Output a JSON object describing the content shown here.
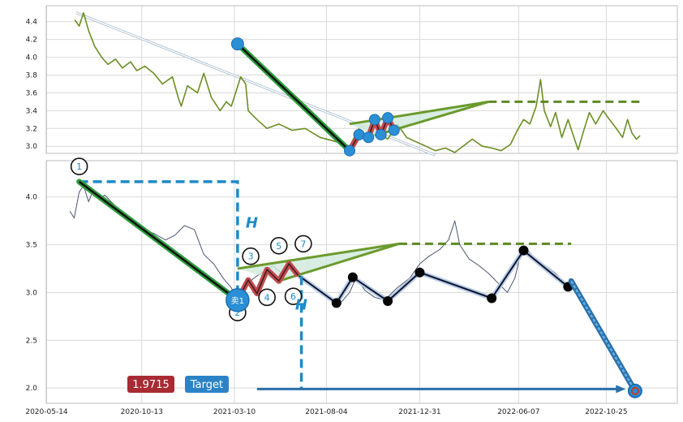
{
  "chart_data": [
    {
      "type": "line",
      "panel": "top",
      "y_ticks": [
        "3.0",
        "3.2",
        "3.4",
        "3.6",
        "3.8",
        "4.0",
        "4.2",
        "4.4"
      ],
      "ylim": [
        2.92,
        4.58
      ],
      "grid": true,
      "series": [
        {
          "name": "",
          "color": "#6b8e23",
          "points": [
            [
              "2020-06-28",
              4.42
            ],
            [
              "2020-07-05",
              4.35
            ],
            [
              "2020-07-12",
              4.5
            ],
            [
              "2020-07-20",
              4.3
            ],
            [
              "2020-07-30",
              4.12
            ],
            [
              "2020-08-10",
              4.0
            ],
            [
              "2020-08-20",
              3.92
            ],
            [
              "2020-09-01",
              3.98
            ],
            [
              "2020-09-12",
              3.88
            ],
            [
              "2020-09-25",
              3.95
            ],
            [
              "2020-10-05",
              3.85
            ],
            [
              "2020-10-18",
              3.9
            ],
            [
              "2020-11-01",
              3.82
            ],
            [
              "2020-11-15",
              3.7
            ],
            [
              "2020-12-01",
              3.78
            ],
            [
              "2020-12-10",
              3.55
            ],
            [
              "2020-12-15",
              3.45
            ],
            [
              "2020-12-25",
              3.68
            ],
            [
              "2021-01-10",
              3.6
            ],
            [
              "2021-01-20",
              3.82
            ],
            [
              "2021-02-01",
              3.55
            ],
            [
              "2021-02-15",
              3.4
            ],
            [
              "2021-02-25",
              3.5
            ],
            [
              "2021-03-05",
              3.45
            ],
            [
              "2021-03-20",
              3.78
            ],
            [
              "2021-03-28",
              3.7
            ],
            [
              "2021-04-01",
              3.4
            ],
            [
              "2021-04-15",
              3.3
            ],
            [
              "2021-05-01",
              3.2
            ],
            [
              "2021-05-20",
              3.25
            ],
            [
              "2021-06-10",
              3.18
            ],
            [
              "2021-07-01",
              3.2
            ],
            [
              "2021-07-25",
              3.1
            ],
            [
              "2021-08-20",
              3.05
            ],
            [
              "2021-09-10",
              3.0
            ],
            [
              "2021-09-25",
              3.2
            ],
            [
              "2021-10-10",
              3.1
            ],
            [
              "2021-10-25",
              3.15
            ],
            [
              "2021-11-10",
              3.08
            ],
            [
              "2021-11-25",
              3.25
            ],
            [
              "2021-12-10",
              3.1
            ],
            [
              "2021-12-25",
              3.05
            ],
            [
              "2022-01-10",
              3.0
            ],
            [
              "2022-01-25",
              2.95
            ],
            [
              "2022-02-10",
              2.98
            ],
            [
              "2022-02-25",
              2.93
            ],
            [
              "2022-03-10",
              3.0
            ],
            [
              "2022-03-25",
              3.08
            ],
            [
              "2022-04-10",
              3.0
            ],
            [
              "2022-04-25",
              2.98
            ],
            [
              "2022-05-10",
              2.95
            ],
            [
              "2022-05-25",
              3.02
            ],
            [
              "2022-06-05",
              3.18
            ],
            [
              "2022-06-15",
              3.3
            ],
            [
              "2022-06-25",
              3.25
            ],
            [
              "2022-07-05",
              3.45
            ],
            [
              "2022-07-12",
              3.75
            ],
            [
              "2022-07-18",
              3.4
            ],
            [
              "2022-07-28",
              3.22
            ],
            [
              "2022-08-05",
              3.38
            ],
            [
              "2022-08-15",
              3.1
            ],
            [
              "2022-08-25",
              3.3
            ],
            [
              "2022-09-01",
              3.15
            ],
            [
              "2022-09-10",
              2.96
            ],
            [
              "2022-09-20",
              3.2
            ],
            [
              "2022-09-28",
              3.38
            ],
            [
              "2022-10-08",
              3.25
            ],
            [
              "2022-10-20",
              3.4
            ],
            [
              "2022-10-30",
              3.3
            ],
            [
              "2022-11-10",
              3.2
            ],
            [
              "2022-11-20",
              3.1
            ],
            [
              "2022-11-28",
              3.3
            ],
            [
              "2022-12-05",
              3.15
            ],
            [
              "2022-12-12",
              3.08
            ],
            [
              "2022-12-18",
              3.12
            ]
          ]
        }
      ],
      "trendline": {
        "from": [
          "2020-06-30",
          4.5
        ],
        "to": [
          "2022-01-25",
          2.9
        ]
      },
      "down_leg": {
        "from": [
          "2021-03-15",
          4.15
        ],
        "to": [
          "2021-09-10",
          2.95
        ]
      },
      "zigzag": [
        [
          "2021-09-10",
          2.95
        ],
        [
          "2021-09-25",
          3.13
        ],
        [
          "2021-10-10",
          3.1
        ],
        [
          "2021-10-20",
          3.3
        ],
        [
          "2021-10-30",
          3.13
        ],
        [
          "2021-11-10",
          3.32
        ],
        [
          "2021-11-20",
          3.18
        ]
      ],
      "triangle": {
        "apex": [
          "2022-04-20",
          3.5
        ],
        "upper_start": [
          "2021-09-10",
          3.25
        ],
        "lower_start": [
          "2021-10-20",
          3.12
        ]
      },
      "target_dashed": {
        "from": [
          "2022-04-20",
          3.5
        ],
        "to": [
          "2022-12-20",
          3.5
        ]
      }
    },
    {
      "type": "line",
      "panel": "bottom",
      "x_ticks": [
        "2020-05-14",
        "2020-10-13",
        "2021-03-10",
        "2021-08-04",
        "2021-12-31",
        "2022-06-07",
        "2022-10-25"
      ],
      "y_ticks": [
        "2.0",
        "2.5",
        "3.0",
        "3.5",
        "4.0"
      ],
      "ylim": [
        1.84,
        4.38
      ],
      "grid": true,
      "price_series": {
        "name": "",
        "color": "#4a5570",
        "points": [
          [
            "2020-06-20",
            3.85
          ],
          [
            "2020-06-27",
            3.78
          ],
          [
            "2020-07-05",
            4.05
          ],
          [
            "2020-07-12",
            4.12
          ],
          [
            "2020-07-20",
            3.95
          ],
          [
            "2020-07-28",
            4.08
          ],
          [
            "2020-08-05",
            3.98
          ],
          [
            "2020-08-15",
            4.02
          ],
          [
            "2020-08-25",
            3.95
          ],
          [
            "2020-09-05",
            3.88
          ],
          [
            "2020-09-18",
            3.8
          ],
          [
            "2020-10-01",
            3.72
          ],
          [
            "2020-10-15",
            3.65
          ],
          [
            "2020-11-01",
            3.62
          ],
          [
            "2020-11-20",
            3.55
          ],
          [
            "2020-12-05",
            3.6
          ],
          [
            "2020-12-20",
            3.7
          ],
          [
            "2021-01-05",
            3.66
          ],
          [
            "2021-01-20",
            3.4
          ],
          [
            "2021-02-05",
            3.3
          ],
          [
            "2021-02-20",
            3.15
          ],
          [
            "2021-03-05",
            3.05
          ],
          [
            "2021-03-15",
            2.92
          ],
          [
            "2021-03-25",
            3.05
          ],
          [
            "2021-04-10",
            3.15
          ],
          [
            "2021-04-25",
            3.22
          ],
          [
            "2021-05-10",
            3.28
          ],
          [
            "2021-05-25",
            3.2
          ],
          [
            "2021-06-10",
            3.3
          ],
          [
            "2021-06-25",
            3.18
          ],
          [
            "2021-07-10",
            3.1
          ],
          [
            "2021-07-25",
            3.02
          ],
          [
            "2021-08-10",
            2.95
          ],
          [
            "2021-08-25",
            2.88
          ],
          [
            "2021-09-10",
            3.0
          ],
          [
            "2021-09-20",
            3.15
          ],
          [
            "2021-10-05",
            3.02
          ],
          [
            "2021-10-20",
            2.95
          ],
          [
            "2021-11-05",
            2.92
          ],
          [
            "2021-11-25",
            3.05
          ],
          [
            "2021-12-15",
            3.15
          ],
          [
            "2021-12-31",
            3.3
          ],
          [
            "2022-01-15",
            3.38
          ],
          [
            "2022-02-01",
            3.45
          ],
          [
            "2022-02-15",
            3.55
          ],
          [
            "2022-02-25",
            3.75
          ],
          [
            "2022-03-05",
            3.5
          ],
          [
            "2022-03-20",
            3.35
          ],
          [
            "2022-04-05",
            3.28
          ],
          [
            "2022-04-20",
            3.2
          ],
          [
            "2022-05-05",
            3.1
          ],
          [
            "2022-05-20",
            3.0
          ],
          [
            "2022-06-01",
            3.15
          ],
          [
            "2022-06-10",
            3.4
          ],
          [
            "2022-06-20",
            3.45
          ],
          [
            "2022-07-05",
            3.35
          ],
          [
            "2022-07-20",
            3.28
          ],
          [
            "2022-08-05",
            3.2
          ],
          [
            "2022-08-20",
            3.1
          ]
        ]
      },
      "swing_points": [
        [
          "2021-08-20",
          2.89
        ],
        [
          "2021-09-15",
          3.16
        ],
        [
          "2021-11-10",
          2.91
        ],
        [
          "2021-12-31",
          3.21
        ],
        [
          "2022-04-25",
          2.94
        ],
        [
          "2022-06-15",
          3.44
        ],
        [
          "2022-08-25",
          3.06
        ]
      ],
      "down_leg": {
        "from": [
          "2020-07-05",
          4.16
        ],
        "to": [
          "2021-03-15",
          2.92
        ]
      },
      "zigzag": [
        [
          "2021-03-15",
          2.92
        ],
        [
          "2021-04-01",
          3.13
        ],
        [
          "2021-04-15",
          2.99
        ],
        [
          "2021-05-01",
          3.24
        ],
        [
          "2021-05-20",
          3.12
        ],
        [
          "2021-06-05",
          3.3
        ],
        [
          "2021-06-20",
          3.18
        ]
      ],
      "triangle": {
        "apex": [
          "2021-11-28",
          3.51
        ],
        "upper_start": [
          "2021-03-15",
          3.25
        ],
        "lower_start": [
          "2021-05-20",
          3.12
        ]
      },
      "target_dashed": {
        "from": [
          "2021-11-28",
          3.51
        ],
        "to": [
          "2022-08-30",
          3.51
        ]
      },
      "measure_dashed": {
        "top": [
          "2021-03-15",
          4.16
        ],
        "corner_x": "2021-03-15",
        "right_top": [
          "2021-03-05",
          4.16
        ]
      },
      "measure_dashed_2": {
        "x": "2021-06-25",
        "from": 3.17,
        "to": 1.99
      },
      "projection": {
        "from": [
          "2022-08-30",
          3.12
        ],
        "to": [
          "2022-12-10",
          1.97
        ]
      },
      "target_arrow": {
        "from": [
          "2021-04-15",
          1.99
        ],
        "to": [
          "2022-11-25",
          1.99
        ]
      },
      "labels": [
        {
          "text": "1",
          "at": [
            "2020-07-05",
            4.32
          ]
        },
        {
          "text": "2",
          "at": [
            "2021-03-15",
            2.79
          ]
        },
        {
          "text": "3",
          "at": [
            "2021-04-05",
            3.38
          ]
        },
        {
          "text": "4",
          "at": [
            "2021-05-01",
            2.95
          ]
        },
        {
          "text": "5",
          "at": [
            "2021-05-20",
            3.49
          ]
        },
        {
          "text": "6",
          "at": [
            "2021-06-12",
            2.96
          ]
        },
        {
          "text": "7",
          "at": [
            "2021-06-28",
            3.51
          ]
        }
      ],
      "h_labels": [
        {
          "text": "H",
          "at": [
            "2021-03-28",
            3.68
          ]
        },
        {
          "text": "H",
          "at": [
            "2021-06-15",
            2.82
          ]
        }
      ],
      "sell_marker": {
        "text": "卖1",
        "at": [
          "2021-03-15",
          2.92
        ]
      },
      "target_marker": {
        "at": [
          "2022-12-10",
          1.97
        ]
      },
      "price_badge": {
        "text": "1.9715",
        "color": "#a82a33"
      },
      "target_badge": {
        "text": "Target",
        "color": "#2b83c6"
      }
    }
  ]
}
